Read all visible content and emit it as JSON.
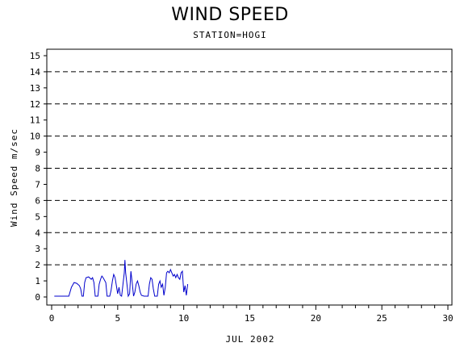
{
  "chart_data": {
    "type": "line",
    "title": "WIND SPEED",
    "subtitle": "STATION=HOGI",
    "xlabel": "JUL 2002",
    "ylabel": "Wind Speed m/sec",
    "xlim": [
      0,
      30
    ],
    "ylim": [
      0,
      15
    ],
    "x_ticks": [
      0,
      5,
      10,
      15,
      20,
      25,
      30
    ],
    "y_ticks": [
      0,
      1,
      2,
      3,
      4,
      5,
      6,
      7,
      8,
      9,
      10,
      11,
      12,
      13,
      14,
      15
    ],
    "grid": "dashed horizontal at 2, 4, 6, 8, 10, 12, 14",
    "grid_lines": [
      2,
      4,
      6,
      8,
      10,
      12,
      14
    ],
    "series": [
      {
        "color": "#0000cc",
        "points": [
          [
            0.2,
            0.05
          ],
          [
            1.0,
            0.05
          ],
          [
            1.3,
            0.05
          ],
          [
            1.5,
            0.6
          ],
          [
            1.7,
            0.9
          ],
          [
            1.9,
            0.85
          ],
          [
            2.1,
            0.7
          ],
          [
            2.2,
            0.5
          ],
          [
            2.3,
            0.05
          ],
          [
            2.4,
            0.05
          ],
          [
            2.5,
            0.9
          ],
          [
            2.6,
            1.2
          ],
          [
            2.8,
            1.25
          ],
          [
            3.0,
            1.1
          ],
          [
            3.1,
            1.2
          ],
          [
            3.2,
            0.9
          ],
          [
            3.3,
            0.05
          ],
          [
            3.5,
            0.05
          ],
          [
            3.6,
            0.8
          ],
          [
            3.7,
            1.1
          ],
          [
            3.8,
            1.3
          ],
          [
            3.9,
            1.2
          ],
          [
            4.1,
            0.9
          ],
          [
            4.2,
            0.05
          ],
          [
            4.4,
            0.05
          ],
          [
            4.5,
            0.4
          ],
          [
            4.6,
            1.0
          ],
          [
            4.7,
            1.4
          ],
          [
            4.8,
            1.2
          ],
          [
            4.9,
            0.7
          ],
          [
            5.0,
            0.2
          ],
          [
            5.1,
            0.6
          ],
          [
            5.2,
            0.1
          ],
          [
            5.3,
            0.05
          ],
          [
            5.4,
            0.8
          ],
          [
            5.5,
            1.5
          ],
          [
            5.55,
            2.3
          ],
          [
            5.6,
            1.5
          ],
          [
            5.7,
            0.8
          ],
          [
            5.8,
            0.05
          ],
          [
            5.9,
            0.2
          ],
          [
            6.0,
            1.6
          ],
          [
            6.1,
            0.9
          ],
          [
            6.2,
            0.05
          ],
          [
            6.3,
            0.3
          ],
          [
            6.4,
            0.8
          ],
          [
            6.5,
            1.0
          ],
          [
            6.6,
            0.7
          ],
          [
            6.7,
            0.3
          ],
          [
            6.8,
            0.1
          ],
          [
            7.0,
            0.05
          ],
          [
            7.2,
            0.05
          ],
          [
            7.3,
            0.05
          ],
          [
            7.4,
            0.8
          ],
          [
            7.5,
            1.2
          ],
          [
            7.6,
            1.1
          ],
          [
            7.7,
            0.5
          ],
          [
            7.8,
            0.05
          ],
          [
            7.9,
            0.05
          ],
          [
            8.0,
            0.05
          ],
          [
            8.1,
            0.8
          ],
          [
            8.2,
            1.0
          ],
          [
            8.3,
            0.6
          ],
          [
            8.4,
            0.8
          ],
          [
            8.5,
            0.1
          ],
          [
            8.6,
            0.6
          ],
          [
            8.7,
            1.5
          ],
          [
            8.8,
            1.6
          ],
          [
            8.9,
            1.5
          ],
          [
            9.0,
            1.7
          ],
          [
            9.1,
            1.5
          ],
          [
            9.2,
            1.3
          ],
          [
            9.3,
            1.4
          ],
          [
            9.4,
            1.2
          ],
          [
            9.5,
            1.4
          ],
          [
            9.6,
            1.2
          ],
          [
            9.7,
            1.1
          ],
          [
            9.8,
            1.5
          ],
          [
            9.9,
            1.6
          ],
          [
            10.0,
            0.3
          ],
          [
            10.1,
            0.7
          ],
          [
            10.2,
            0.1
          ],
          [
            10.3,
            0.8
          ]
        ]
      }
    ]
  }
}
